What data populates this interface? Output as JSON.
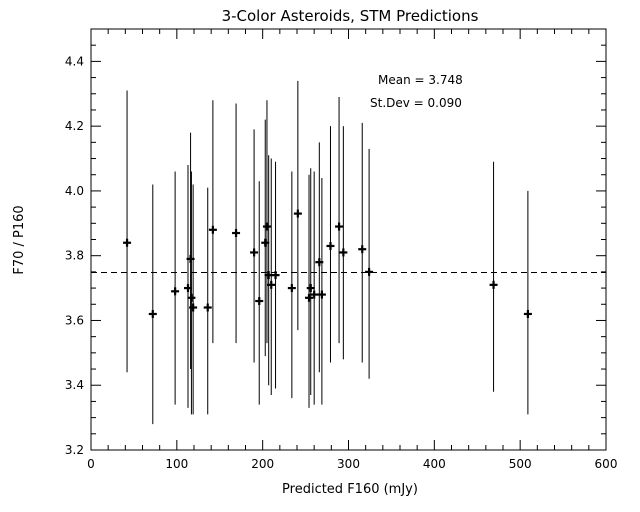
{
  "chart_data": {
    "type": "scatter",
    "title": "3-Color Asteroids, STM Predictions",
    "xlabel": "Predicted F160 (mJy)",
    "ylabel": "F70 / P160",
    "xlim": [
      0,
      600
    ],
    "ylim": [
      3.2,
      4.5
    ],
    "xticks": [
      0,
      100,
      200,
      300,
      400,
      500,
      600
    ],
    "yticks": [
      3.2,
      3.4,
      3.6,
      3.8,
      4.0,
      4.2,
      4.4
    ],
    "x_minor_step": 20,
    "y_minor_step": 0.05,
    "grid": false,
    "mean_line": 3.748,
    "annotations": [
      "Mean = 3.748",
      "St.Dev = 0.090"
    ],
    "points": [
      {
        "x": 42,
        "y": 3.84,
        "ylo": 3.44,
        "yhi": 4.31
      },
      {
        "x": 72,
        "y": 3.62,
        "ylo": 3.28,
        "yhi": 4.02
      },
      {
        "x": 98,
        "y": 3.69,
        "ylo": 3.34,
        "yhi": 4.06
      },
      {
        "x": 113,
        "y": 3.7,
        "ylo": 3.33,
        "yhi": 4.08
      },
      {
        "x": 116,
        "y": 3.79,
        "ylo": 3.45,
        "yhi": 4.18
      },
      {
        "x": 117,
        "y": 3.67,
        "ylo": 3.31,
        "yhi": 4.06
      },
      {
        "x": 119,
        "y": 3.64,
        "ylo": 3.31,
        "yhi": 4.02
      },
      {
        "x": 136,
        "y": 3.64,
        "ylo": 3.31,
        "yhi": 4.01
      },
      {
        "x": 142,
        "y": 3.88,
        "ylo": 3.53,
        "yhi": 4.28
      },
      {
        "x": 169,
        "y": 3.87,
        "ylo": 3.53,
        "yhi": 4.27
      },
      {
        "x": 190,
        "y": 3.81,
        "ylo": 3.47,
        "yhi": 4.19
      },
      {
        "x": 196,
        "y": 3.66,
        "ylo": 3.34,
        "yhi": 4.03
      },
      {
        "x": 203,
        "y": 3.84,
        "ylo": 3.49,
        "yhi": 4.22
      },
      {
        "x": 205,
        "y": 3.89,
        "ylo": 3.53,
        "yhi": 4.28
      },
      {
        "x": 207,
        "y": 3.74,
        "ylo": 3.4,
        "yhi": 4.11
      },
      {
        "x": 210,
        "y": 3.71,
        "ylo": 3.37,
        "yhi": 4.1
      },
      {
        "x": 215,
        "y": 3.74,
        "ylo": 3.39,
        "yhi": 4.09
      },
      {
        "x": 234,
        "y": 3.7,
        "ylo": 3.36,
        "yhi": 4.06
      },
      {
        "x": 241,
        "y": 3.93,
        "ylo": 3.57,
        "yhi": 4.34
      },
      {
        "x": 254,
        "y": 3.67,
        "ylo": 3.33,
        "yhi": 4.05
      },
      {
        "x": 256,
        "y": 3.7,
        "ylo": 3.37,
        "yhi": 4.07
      },
      {
        "x": 260,
        "y": 3.68,
        "ylo": 3.34,
        "yhi": 4.06
      },
      {
        "x": 266,
        "y": 3.78,
        "ylo": 3.44,
        "yhi": 4.15
      },
      {
        "x": 269,
        "y": 3.68,
        "ylo": 3.34,
        "yhi": 4.04
      },
      {
        "x": 279,
        "y": 3.83,
        "ylo": 3.47,
        "yhi": 4.2
      },
      {
        "x": 289,
        "y": 3.89,
        "ylo": 3.53,
        "yhi": 4.29
      },
      {
        "x": 294,
        "y": 3.81,
        "ylo": 3.48,
        "yhi": 4.2
      },
      {
        "x": 316,
        "y": 3.82,
        "ylo": 3.47,
        "yhi": 4.21
      },
      {
        "x": 324,
        "y": 3.75,
        "ylo": 3.42,
        "yhi": 4.13
      },
      {
        "x": 469,
        "y": 3.71,
        "ylo": 3.38,
        "yhi": 4.09
      },
      {
        "x": 509,
        "y": 3.62,
        "ylo": 3.31,
        "yhi": 4.0
      }
    ]
  }
}
